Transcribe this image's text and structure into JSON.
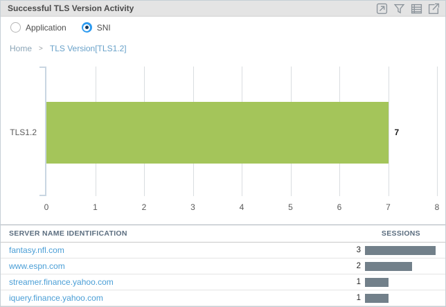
{
  "header": {
    "title": "Successful TLS Version Activity",
    "icons": [
      {
        "name": "maximize-icon"
      },
      {
        "name": "filter-icon"
      },
      {
        "name": "table-view-icon"
      },
      {
        "name": "export-icon"
      }
    ]
  },
  "view_toggle": {
    "options": [
      {
        "label": "Application",
        "selected": false
      },
      {
        "label": "SNI",
        "selected": true
      }
    ]
  },
  "breadcrumb": {
    "home": "Home",
    "separator": ">",
    "current": "TLS Version[TLS1.2]"
  },
  "chart_data": {
    "type": "bar",
    "orientation": "horizontal",
    "title": "",
    "categories": [
      "TLS1.2"
    ],
    "values": [
      7
    ],
    "value_labels": [
      "7"
    ],
    "xlim": [
      0,
      8
    ],
    "xticks": [
      0,
      1,
      2,
      3,
      4,
      5,
      6,
      7,
      8
    ],
    "grid": true,
    "bar_color": "#a4c55a"
  },
  "table": {
    "columns": [
      "SERVER NAME IDENTIFICATION",
      "SESSIONS"
    ],
    "rows": [
      {
        "server_name": "fantasy.nfl.com",
        "sessions": 3
      },
      {
        "server_name": "www.espn.com",
        "sessions": 2
      },
      {
        "server_name": "streamer.finance.yahoo.com",
        "sessions": 1
      },
      {
        "server_name": "iquery.finance.yahoo.com",
        "sessions": 1
      }
    ],
    "max_sessions": 3
  },
  "colors": {
    "header_bg": "#e4e4e4",
    "bar_green": "#a4c55a",
    "session_bar_gray": "#72808a",
    "link_blue": "#4a9ed6",
    "radio_selected_blue": "#2d9bf0"
  }
}
